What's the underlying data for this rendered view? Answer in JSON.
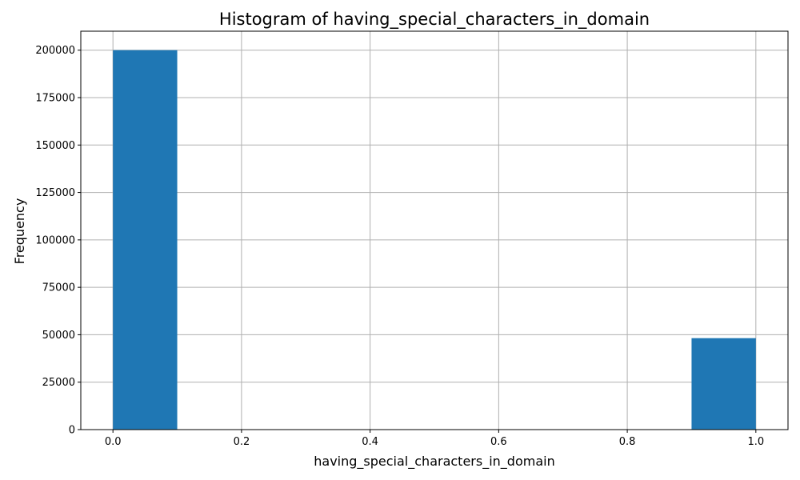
{
  "chart_data": {
    "type": "bar",
    "title": "Histogram of having_special_characters_in_domain",
    "xlabel": "having_special_characters_in_domain",
    "ylabel": "Frequency",
    "xlim": [
      -0.05,
      1.05
    ],
    "ylim": [
      0,
      210000
    ],
    "x_ticks": [
      {
        "value": 0.0,
        "label": "0.0"
      },
      {
        "value": 0.2,
        "label": "0.2"
      },
      {
        "value": 0.4,
        "label": "0.4"
      },
      {
        "value": 0.6,
        "label": "0.6"
      },
      {
        "value": 0.8,
        "label": "0.8"
      },
      {
        "value": 1.0,
        "label": "1.0"
      }
    ],
    "y_ticks": [
      {
        "value": 0,
        "label": "0"
      },
      {
        "value": 25000,
        "label": "25000"
      },
      {
        "value": 50000,
        "label": "50000"
      },
      {
        "value": 75000,
        "label": "75000"
      },
      {
        "value": 100000,
        "label": "100000"
      },
      {
        "value": 125000,
        "label": "125000"
      },
      {
        "value": 150000,
        "label": "150000"
      },
      {
        "value": 175000,
        "label": "175000"
      },
      {
        "value": 200000,
        "label": "200000"
      }
    ],
    "bins": [
      {
        "x0": 0.0,
        "x1": 0.1,
        "count": 200000
      },
      {
        "x0": 0.1,
        "x1": 0.2,
        "count": 0
      },
      {
        "x0": 0.2,
        "x1": 0.3,
        "count": 0
      },
      {
        "x0": 0.3,
        "x1": 0.4,
        "count": 0
      },
      {
        "x0": 0.4,
        "x1": 0.5,
        "count": 0
      },
      {
        "x0": 0.5,
        "x1": 0.6,
        "count": 0
      },
      {
        "x0": 0.6,
        "x1": 0.7,
        "count": 0
      },
      {
        "x0": 0.7,
        "x1": 0.8,
        "count": 0
      },
      {
        "x0": 0.8,
        "x1": 0.9,
        "count": 0
      },
      {
        "x0": 0.9,
        "x1": 1.0,
        "count": 48200
      }
    ],
    "grid": true,
    "legend": "none",
    "bar_color": "#1f77b4",
    "grid_color": "#b0b0b0"
  }
}
